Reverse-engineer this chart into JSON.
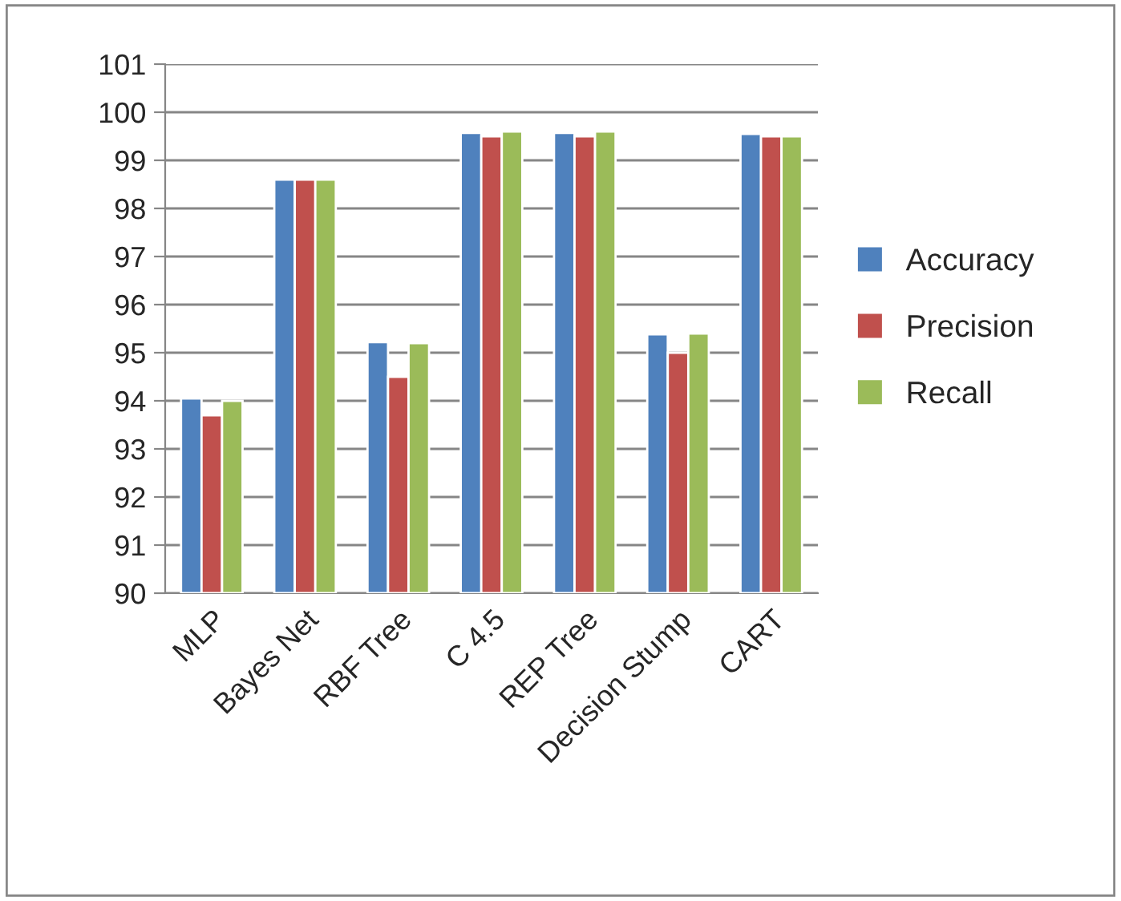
{
  "chart_data": {
    "type": "bar",
    "categories": [
      "MLP",
      "Bayes Net",
      "RBF Tree",
      "C 4.5",
      "REP Tree",
      "Decision Stump",
      "CART"
    ],
    "series": [
      {
        "name": "Accuracy",
        "color": "#4f81bd",
        "values": [
          94.05,
          98.6,
          95.22,
          99.57,
          99.57,
          95.38,
          99.55
        ]
      },
      {
        "name": "Precision",
        "color": "#c0504d",
        "values": [
          93.7,
          98.6,
          94.5,
          99.5,
          99.5,
          95.0,
          99.5
        ]
      },
      {
        "name": "Recall",
        "color": "#9bbb59",
        "values": [
          94.0,
          98.6,
          95.2,
          99.6,
          99.6,
          95.4,
          99.5
        ]
      }
    ],
    "ylim": [
      90,
      101
    ],
    "yticks": [
      90,
      91,
      92,
      93,
      94,
      95,
      96,
      97,
      98,
      99,
      100,
      101
    ],
    "grid": "y",
    "legend": "right"
  }
}
